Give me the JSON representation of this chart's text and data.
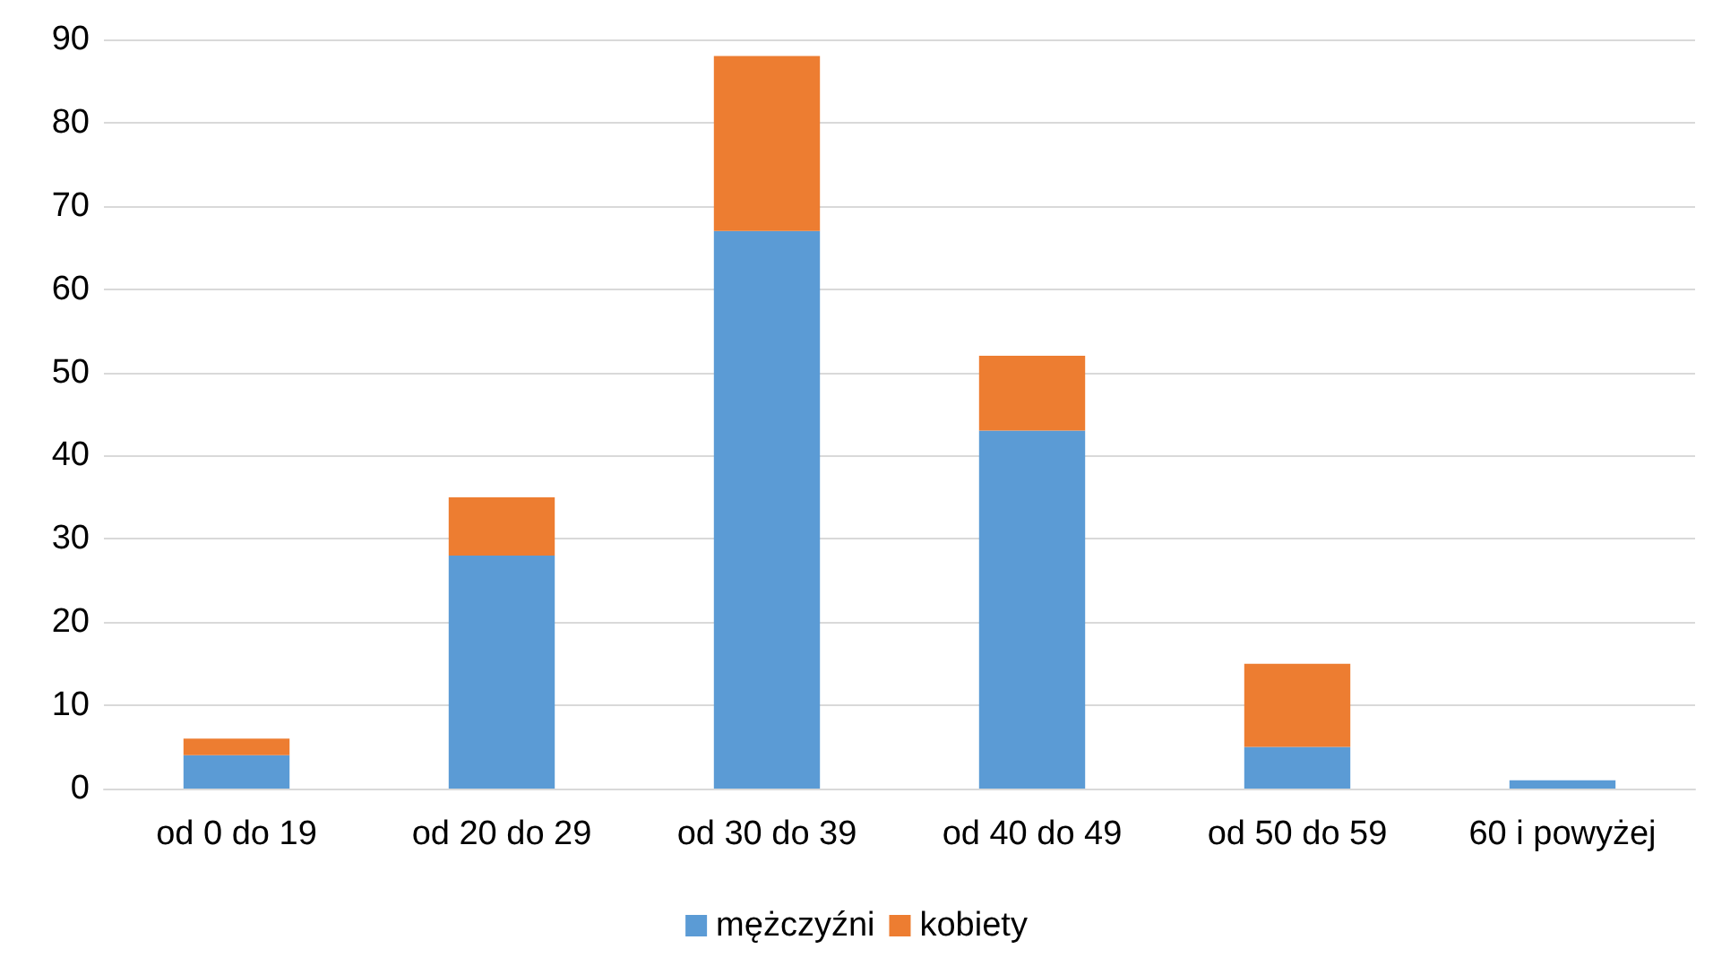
{
  "chart_data": {
    "type": "bar",
    "stacked": true,
    "categories": [
      "od 0 do 19",
      "od 20 do 29",
      "od 30 do 39",
      "od 40 do 49",
      "od 50 do 59",
      "60 i powyżej"
    ],
    "series": [
      {
        "name": "mężczyźni",
        "color": "#5b9bd5",
        "values": [
          4,
          28,
          67,
          43,
          5,
          1
        ]
      },
      {
        "name": "kobiety",
        "color": "#ed7d31",
        "values": [
          2,
          7,
          21,
          9,
          10,
          0
        ]
      }
    ],
    "ylim": [
      0,
      90
    ],
    "yticks": [
      0,
      10,
      20,
      30,
      40,
      50,
      60,
      70,
      80,
      90
    ],
    "grid": "y",
    "legend": "bottom"
  }
}
